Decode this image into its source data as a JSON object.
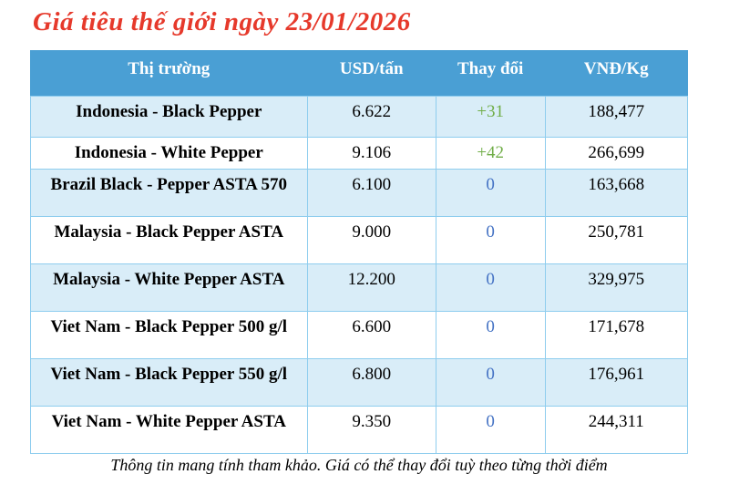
{
  "title": "Giá tiêu thế giới ngày 23/01/2026",
  "table": {
    "headers": [
      "Thị trường",
      "USD/tấn",
      "Thay đổi",
      "VNĐ/Kg"
    ],
    "rows": [
      {
        "market": "Indonesia - Black Pepper",
        "usd": "6.622",
        "change": "+31",
        "vnd": "188,477"
      },
      {
        "market": "Indonesia - White Pepper",
        "usd": "9.106",
        "change": "+42",
        "vnd": "266,699"
      },
      {
        "market": "Brazil Black - Pepper ASTA 570",
        "usd": "6.100",
        "change": "0",
        "vnd": "163,668"
      },
      {
        "market": "Malaysia - Black Pepper ASTA",
        "usd": "9.000",
        "change": "0",
        "vnd": "250,781"
      },
      {
        "market": "Malaysia - White Pepper ASTA",
        "usd": "12.200",
        "change": "0",
        "vnd": "329,975"
      },
      {
        "market": "Viet Nam - Black Pepper 500 g/l",
        "usd": "6.600",
        "change": "0",
        "vnd": "171,678"
      },
      {
        "market": "Viet Nam - Black Pepper 550 g/l",
        "usd": "6.800",
        "change": "0",
        "vnd": "176,961"
      },
      {
        "market": "Viet Nam - White Pepper ASTA",
        "usd": "9.350",
        "change": "0",
        "vnd": "244,311"
      }
    ]
  },
  "footer": "Thông tin mang tính tham khảo. Giá có thể thay đổi tuỳ theo từng thời điểm",
  "colors": {
    "title_red": "#e6392b",
    "header_bg": "#4a9fd4",
    "header_text": "#ffffff",
    "row_alt_bg": "#d9edf8",
    "row_bg": "#ffffff",
    "border": "#8ecdee",
    "change_positive": "#70ad47",
    "change_zero": "#4472c4",
    "text": "#000000"
  }
}
